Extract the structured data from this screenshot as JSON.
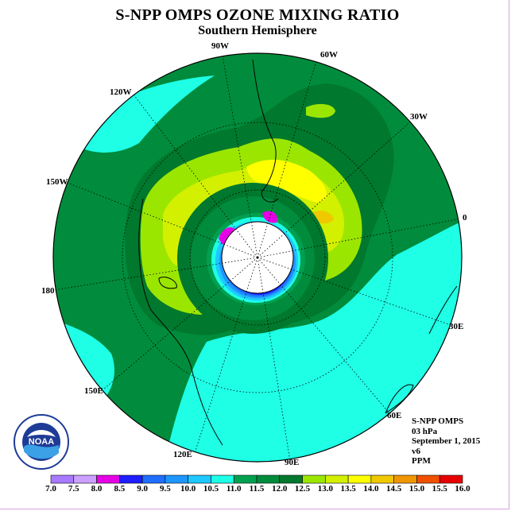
{
  "title": "S-NPP OMPS OZONE MIXING RATIO",
  "subtitle": "Southern Hemisphere",
  "longitude_labels": {
    "w90": "90W",
    "w60": "60W",
    "w30": "30W",
    "w120": "120W",
    "w150": "150W",
    "zero": "0",
    "e180": "180",
    "e30": "30E",
    "e60": "60E",
    "e90": "90E",
    "e120": "120E",
    "e150": "150E"
  },
  "info": {
    "instrument": "S-NPP OMPS",
    "level": "03 hPa",
    "date": "September 1, 2015",
    "version": "v6",
    "units": "PPM"
  },
  "logo": {
    "text": "NOAA",
    "icon": "noaa-logo-icon"
  },
  "colorbar": {
    "ticks": [
      "7.0",
      "7.5",
      "8.0",
      "8.5",
      "9.0",
      "9.5",
      "10.0",
      "10.5",
      "11.0",
      "11.5",
      "12.0",
      "12.5",
      "13.0",
      "13.5",
      "14.0",
      "14.5",
      "15.0",
      "15.5",
      "16.0"
    ],
    "colors": [
      "#a77aff",
      "#cca0ff",
      "#e600e6",
      "#1e1eff",
      "#1e6eff",
      "#1e96ff",
      "#1ec8ff",
      "#1effe6",
      "#00a050",
      "#008c3c",
      "#00782d",
      "#9be600",
      "#d2f000",
      "#ffff00",
      "#f0c800",
      "#f09600",
      "#f05000",
      "#e60000",
      "#8c5a3c"
    ]
  }
}
